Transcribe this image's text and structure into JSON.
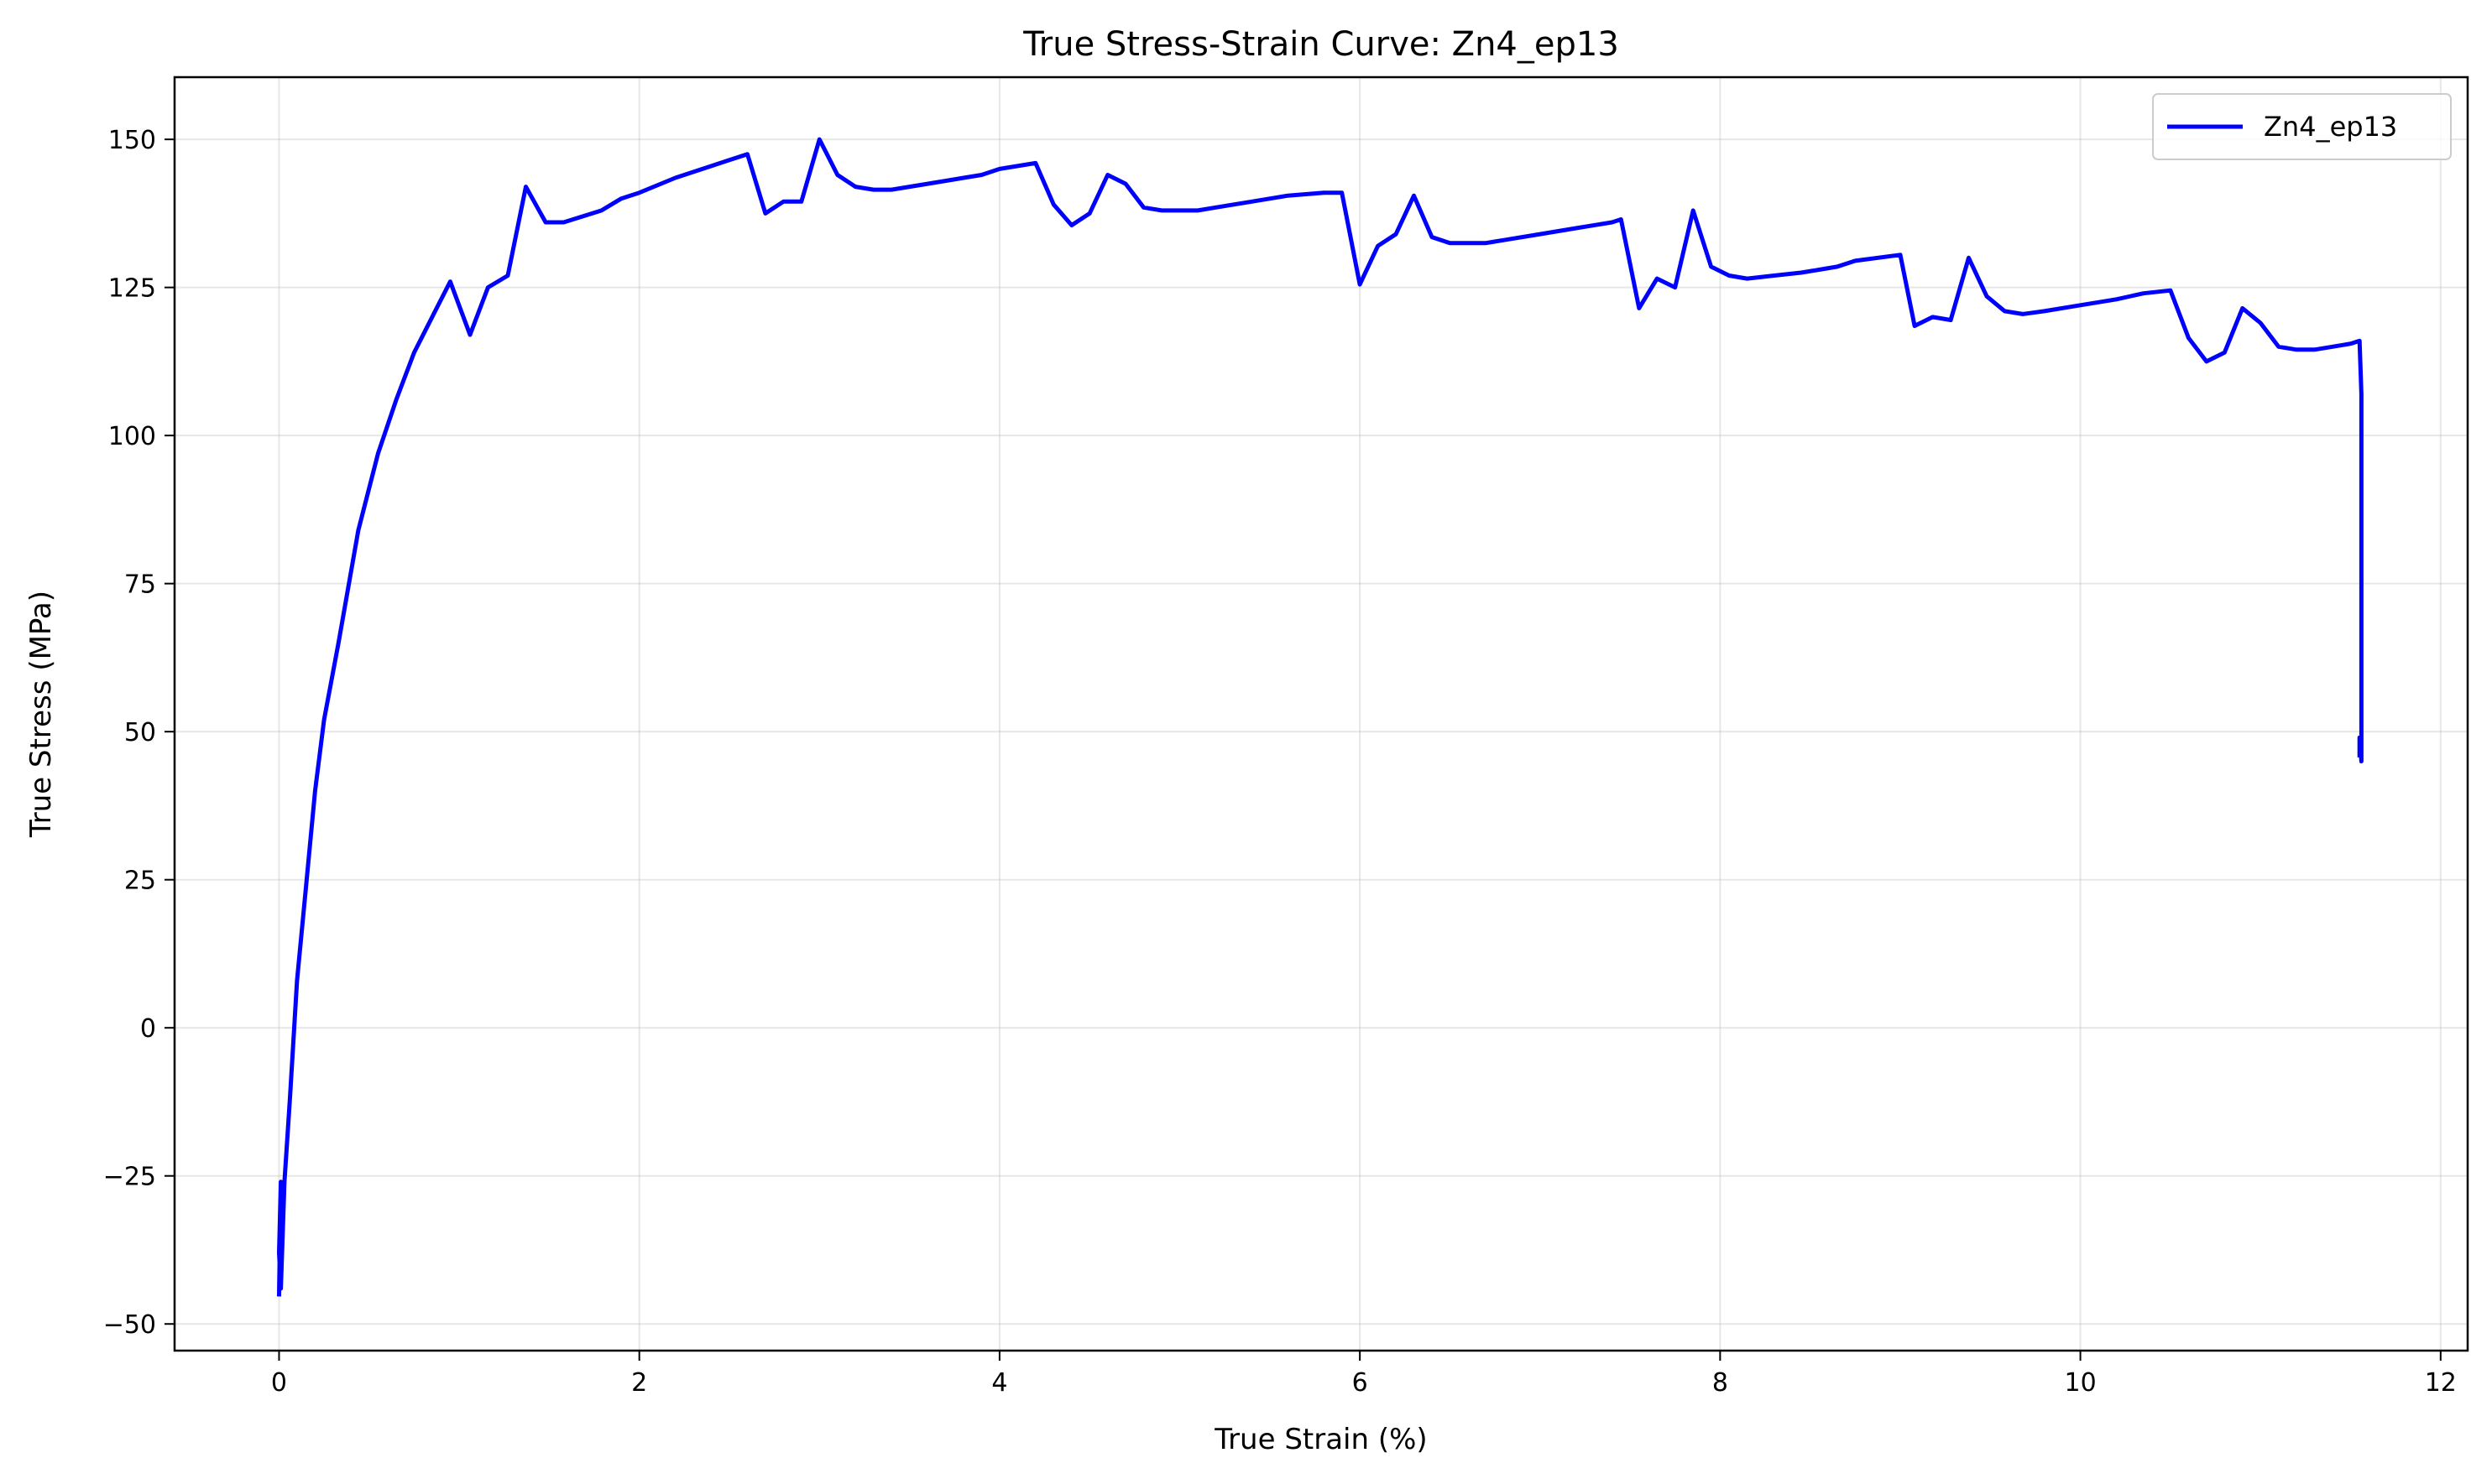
{
  "chart_data": {
    "type": "line",
    "title": "True Stress-Strain Curve: Zn4_ep13",
    "xlabel": "True Strain (%)",
    "ylabel": "True Stress (MPa)",
    "xlim": [
      -0.58,
      12.15
    ],
    "ylim": [
      -54.5,
      160.5
    ],
    "xticks": [
      0,
      2,
      4,
      6,
      8,
      10,
      12
    ],
    "yticks": [
      -50,
      -25,
      0,
      25,
      50,
      75,
      100,
      125,
      150
    ],
    "grid": true,
    "legend_position": "top-right",
    "series": [
      {
        "name": "Zn4_ep13",
        "color": "#0000ff",
        "x": [
          0,
          0.01,
          0.0,
          0.01,
          0.03,
          0.06,
          0.1,
          0.15,
          0.2,
          0.25,
          0.33,
          0.44,
          0.55,
          0.65,
          0.75,
          0.85,
          0.95,
          1.06,
          1.16,
          1.27,
          1.37,
          1.48,
          1.58,
          1.79,
          1.9,
          2.0,
          2.2,
          2.4,
          2.5,
          2.6,
          2.7,
          2.8,
          2.9,
          3.0,
          3.1,
          3.2,
          3.3,
          3.4,
          3.6,
          3.8,
          3.9,
          4.0,
          4.1,
          4.2,
          4.3,
          4.4,
          4.5,
          4.6,
          4.7,
          4.8,
          4.9,
          5.0,
          5.1,
          5.2,
          5.3,
          5.4,
          5.6,
          5.8,
          5.9,
          6.0,
          6.1,
          6.2,
          6.3,
          6.4,
          6.5,
          6.6,
          6.7,
          6.8,
          7.0,
          7.2,
          7.4,
          7.45,
          7.55,
          7.65,
          7.75,
          7.85,
          7.95,
          8.05,
          8.15,
          8.3,
          8.45,
          8.55,
          8.65,
          8.75,
          9.0,
          9.08,
          9.18,
          9.28,
          9.38,
          9.48,
          9.58,
          9.68,
          9.8,
          10.0,
          10.2,
          10.35,
          10.5,
          10.6,
          10.7,
          10.8,
          10.9,
          11.0,
          11.1,
          11.2,
          11.3,
          11.4,
          11.5,
          11.55,
          11.56,
          11.56,
          11.56,
          11.55,
          11.55
        ],
        "y": [
          -45,
          -26,
          -38,
          -44,
          -26,
          -12,
          8,
          24,
          40,
          52,
          65,
          84,
          97,
          106,
          114,
          120,
          126,
          117,
          125,
          127,
          142,
          136,
          136,
          138,
          140,
          141,
          143.5,
          145.5,
          146.5,
          147.5,
          137.5,
          139.5,
          139.5,
          150,
          144,
          142,
          141.5,
          141.5,
          142.5,
          143.5,
          144,
          145,
          145.5,
          146,
          139,
          135.5,
          137.5,
          144,
          142.5,
          138.5,
          138,
          138,
          138,
          138.5,
          139,
          139.5,
          140.5,
          141,
          141,
          125.5,
          132,
          134,
          140.5,
          133.5,
          132.5,
          132.5,
          132.5,
          133,
          134,
          135,
          136,
          136.5,
          121.5,
          126.5,
          125,
          138,
          128.5,
          127,
          126.5,
          127,
          127.5,
          128,
          128.5,
          129.5,
          130.5,
          118.5,
          120,
          119.5,
          130,
          123.5,
          121,
          120.5,
          121,
          122,
          123,
          124,
          124.5,
          116.5,
          112.5,
          114,
          121.5,
          119,
          115,
          114.5,
          114.5,
          115,
          115.5,
          116,
          107,
          50,
          45,
          49,
          46
        ]
      }
    ]
  }
}
